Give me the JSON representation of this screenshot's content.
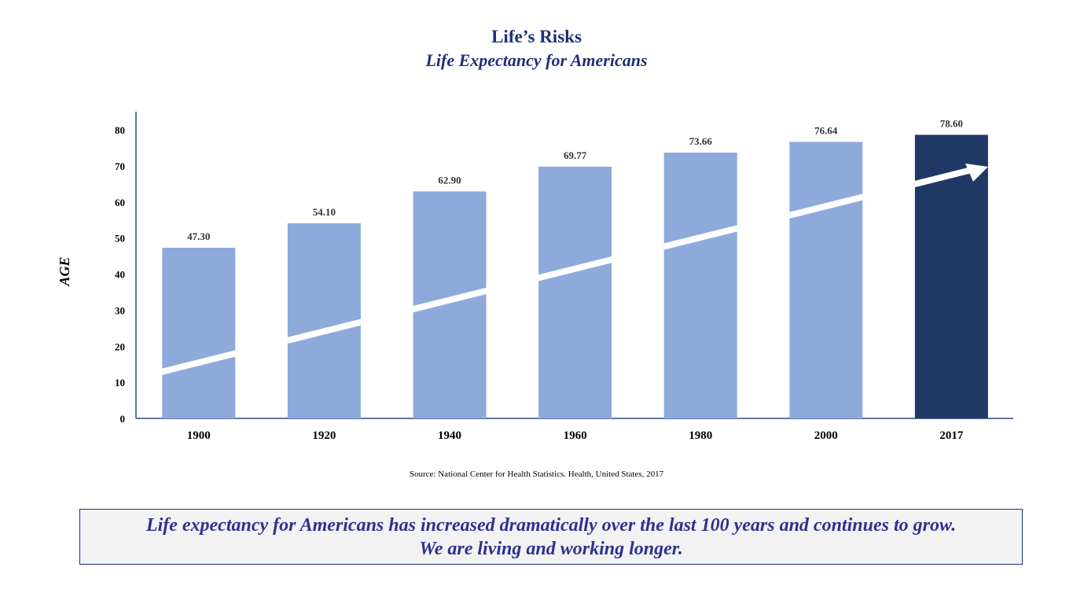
{
  "header": {
    "title": "Life’s Risks",
    "subtitle": "Life Expectancy for Americans"
  },
  "chart_data": {
    "type": "bar",
    "categories": [
      "1900",
      "1920",
      "1940",
      "1960",
      "1980",
      "2000",
      "2017"
    ],
    "values": [
      47.3,
      54.1,
      62.9,
      69.77,
      73.66,
      76.64,
      78.6
    ],
    "data_labels": [
      "47.30",
      "54.10",
      "62.90",
      "69.77",
      "73.66",
      "76.64",
      "78.60"
    ],
    "ylabel": "AGE",
    "xlabel": "",
    "ylim": [
      0,
      85
    ],
    "yticks": [
      0,
      10,
      20,
      30,
      40,
      50,
      60,
      70,
      80
    ],
    "grid": false,
    "legend": "none",
    "highlight_category": "2017",
    "decoration": "white upward trend arrow across bars",
    "colors": {
      "bar": "#8eaadb",
      "highlight": "#203864",
      "axis": "#2f4a8a",
      "text": "#000000"
    }
  },
  "source_note": "Source:  National Center for Health Statistics.  Health, United States, 2017",
  "callout": {
    "line1": "Life expectancy for Americans has increased dramatically over the last 100 years and continues to grow.",
    "line2": "We are living and working longer."
  }
}
